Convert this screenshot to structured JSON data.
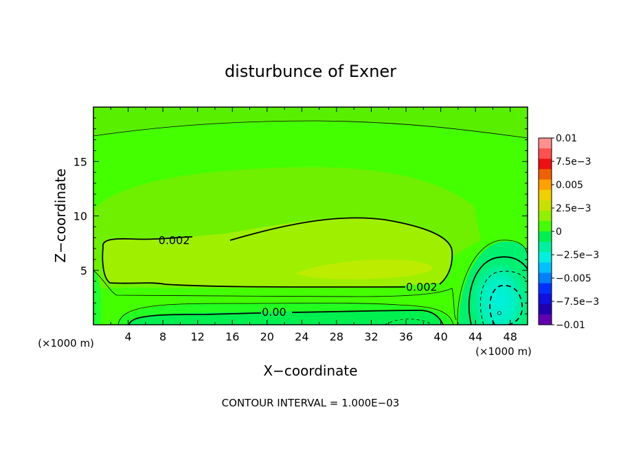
{
  "chart_data": {
    "type": "heatmap",
    "title": "disturbunce of Exner",
    "xlabel": "X−coordinate",
    "ylabel": "Z−coordinate",
    "x_unit": "(×1000 m)",
    "y_unit": "(×1000 m)",
    "xlim": [
      0,
      50
    ],
    "ylim": [
      0,
      20
    ],
    "x_ticks": [
      4,
      8,
      12,
      16,
      20,
      24,
      28,
      32,
      36,
      40,
      44,
      48
    ],
    "y_ticks": [
      5,
      10,
      15
    ],
    "footer": "CONTOUR INTERVAL = 1.000E−03",
    "colorbar": {
      "labels": [
        "0.01",
        "7.5e−3",
        "0.005",
        "2.5e−3",
        "0",
        "−2.5e−3",
        "−0.005",
        "−7.5e−3",
        "−0.01"
      ],
      "values": [
        0.01,
        0.0075,
        0.005,
        0.0025,
        0,
        -0.0025,
        -0.005,
        -0.0075,
        -0.01
      ],
      "colors": [
        "#ff9090",
        "#ff5050",
        "#ee1010",
        "#f06000",
        "#ffa000",
        "#f0d000",
        "#c8e000",
        "#90f000",
        "#44ff00",
        "#00f050",
        "#00f0a0",
        "#00f0e0",
        "#00c0ff",
        "#0080ff",
        "#0030ff",
        "#1010e0",
        "#2000b0",
        "#6000b0"
      ]
    },
    "contour_labels": [
      {
        "text": "0.002",
        "x": 9.3,
        "z": 7.8
      },
      {
        "text": "0.002",
        "x": 37.8,
        "z": 3.5
      },
      {
        "text": "0.00",
        "x": 20.8,
        "z": 1.2
      }
    ],
    "contour_interval": 0.001
  }
}
